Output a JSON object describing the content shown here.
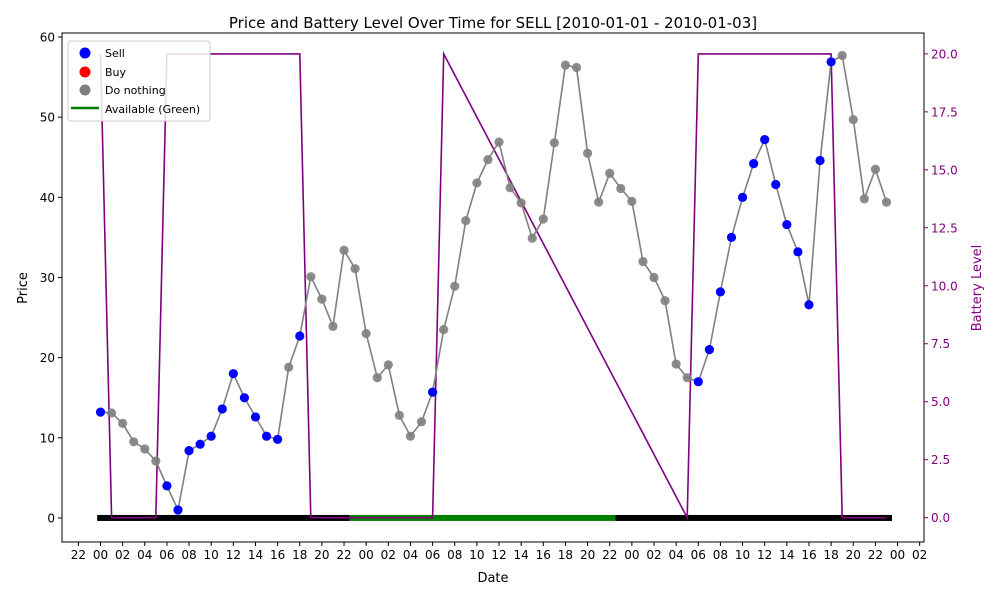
{
  "chart_data": {
    "type": "line",
    "title": "Price and Battery Level Over Time for SELL [2010-01-01 - 2010-01-03]",
    "xlabel": "Date",
    "ylabel": "Price",
    "y2label": "Battery Level",
    "x_start": "2009-12-31 22:00",
    "x_end": "2010-01-04 02:00",
    "xlim_hours_from_start_label": "22:00 (day before) to 02:00 (day after)",
    "x_tick_labels": [
      "22",
      "00",
      "02",
      "04",
      "06",
      "08",
      "10",
      "12",
      "14",
      "16",
      "18",
      "20",
      "22",
      "00",
      "02",
      "04",
      "06",
      "08",
      "10",
      "12",
      "14",
      "16",
      "18",
      "20",
      "22",
      "00",
      "02",
      "04",
      "06",
      "08",
      "10",
      "12",
      "14",
      "16",
      "18",
      "20",
      "22",
      "00",
      "02"
    ],
    "ylim": [
      -3,
      60.5
    ],
    "y_ticks": [
      "0",
      "10",
      "20",
      "30",
      "40",
      "50",
      "60"
    ],
    "y2lim": [
      -1.05,
      20.9
    ],
    "y2_ticks": [
      "0.0",
      "2.5",
      "5.0",
      "7.5",
      "10.0",
      "12.5",
      "15.0",
      "17.5",
      "20.0"
    ],
    "legend": {
      "position": "top-left",
      "entries": [
        {
          "label": "Sell",
          "color": "#0000ff",
          "marker": "circle"
        },
        {
          "label": "Buy",
          "color": "#ff0000",
          "marker": "circle"
        },
        {
          "label": "Do nothing",
          "color": "#808080",
          "marker": "circle"
        },
        {
          "label": "Available (Green)",
          "color": "#008000",
          "marker": "line"
        }
      ]
    },
    "price_series": {
      "name": "Price",
      "line_color": "#808080",
      "hours": [
        0,
        1,
        2,
        3,
        4,
        5,
        6,
        7,
        8,
        9,
        10,
        11,
        12,
        13,
        14,
        15,
        16,
        17,
        18,
        19,
        20,
        21,
        22,
        23,
        24,
        25,
        26,
        27,
        28,
        29,
        30,
        31,
        32,
        33,
        34,
        35,
        36,
        37,
        38,
        39,
        40,
        41,
        42,
        43,
        44,
        45,
        46,
        47,
        48,
        49,
        50,
        51,
        52,
        53,
        54,
        55,
        56,
        57,
        58,
        59,
        60,
        61,
        62,
        63,
        64,
        65,
        66,
        67,
        68,
        69,
        70,
        71
      ],
      "dates": [
        "2010-01-01 00:00",
        "2010-01-01 01:00",
        "2010-01-01 02:00",
        "2010-01-01 03:00",
        "2010-01-01 04:00",
        "2010-01-01 05:00",
        "2010-01-01 06:00",
        "2010-01-01 07:00",
        "2010-01-01 08:00",
        "2010-01-01 09:00",
        "2010-01-01 10:00",
        "2010-01-01 11:00",
        "2010-01-01 12:00",
        "2010-01-01 13:00",
        "2010-01-01 14:00",
        "2010-01-01 15:00",
        "2010-01-01 16:00",
        "2010-01-01 17:00",
        "2010-01-01 18:00",
        "2010-01-01 19:00",
        "2010-01-01 20:00",
        "2010-01-01 21:00",
        "2010-01-01 22:00",
        "2010-01-01 23:00",
        "2010-01-02 00:00",
        "2010-01-02 01:00",
        "2010-01-02 02:00",
        "2010-01-02 03:00",
        "2010-01-02 04:00",
        "2010-01-02 05:00",
        "2010-01-02 06:00",
        "2010-01-02 07:00",
        "2010-01-02 08:00",
        "2010-01-02 09:00",
        "2010-01-02 10:00",
        "2010-01-02 11:00",
        "2010-01-02 12:00",
        "2010-01-02 13:00",
        "2010-01-02 14:00",
        "2010-01-02 15:00",
        "2010-01-02 16:00",
        "2010-01-02 17:00",
        "2010-01-02 18:00",
        "2010-01-02 19:00",
        "2010-01-02 20:00",
        "2010-01-02 21:00",
        "2010-01-02 22:00",
        "2010-01-02 23:00",
        "2010-01-03 00:00",
        "2010-01-03 01:00",
        "2010-01-03 02:00",
        "2010-01-03 03:00",
        "2010-01-03 04:00",
        "2010-01-03 05:00",
        "2010-01-03 06:00",
        "2010-01-03 07:00",
        "2010-01-03 08:00",
        "2010-01-03 09:00",
        "2010-01-03 10:00",
        "2010-01-03 11:00",
        "2010-01-03 12:00",
        "2010-01-03 13:00",
        "2010-01-03 14:00",
        "2010-01-03 15:00",
        "2010-01-03 16:00",
        "2010-01-03 17:00",
        "2010-01-03 18:00",
        "2010-01-03 19:00",
        "2010-01-03 20:00",
        "2010-01-03 21:00",
        "2010-01-03 22:00",
        "2010-01-03 23:00"
      ],
      "values": [
        13.2,
        13.1,
        11.8,
        9.5,
        8.6,
        7.1,
        4.0,
        1.0,
        8.4,
        9.2,
        10.2,
        13.6,
        18.0,
        15.0,
        12.6,
        10.2,
        9.8,
        18.8,
        22.7,
        30.1,
        27.3,
        23.9,
        33.4,
        31.1,
        23.0,
        17.5,
        19.1,
        12.8,
        10.2,
        12.0,
        15.7,
        23.5,
        28.9,
        37.1,
        41.8,
        44.7,
        46.9,
        41.2,
        39.3,
        34.9,
        37.3,
        46.8,
        56.5,
        56.2,
        45.5,
        39.4,
        43.0,
        41.1,
        39.5,
        32.0,
        30.0,
        27.1,
        19.2,
        17.5,
        17.0,
        21.0,
        28.2,
        35.0,
        40.0,
        44.2,
        47.2,
        41.6,
        36.6,
        33.2,
        26.6,
        44.6,
        56.9,
        57.7,
        49.7,
        39.8,
        43.5,
        39.4
      ],
      "actions": [
        "Sell",
        "Do nothing",
        "Do nothing",
        "Do nothing",
        "Do nothing",
        "Do nothing",
        "Sell",
        "Sell",
        "Sell",
        "Sell",
        "Sell",
        "Sell",
        "Sell",
        "Sell",
        "Sell",
        "Sell",
        "Sell",
        "Do nothing",
        "Sell",
        "Do nothing",
        "Do nothing",
        "Do nothing",
        "Do nothing",
        "Do nothing",
        "Do nothing",
        "Do nothing",
        "Do nothing",
        "Do nothing",
        "Do nothing",
        "Do nothing",
        "Sell",
        "Do nothing",
        "Do nothing",
        "Do nothing",
        "Do nothing",
        "Do nothing",
        "Do nothing",
        "Do nothing",
        "Do nothing",
        "Do nothing",
        "Do nothing",
        "Do nothing",
        "Do nothing",
        "Do nothing",
        "Do nothing",
        "Do nothing",
        "Do nothing",
        "Do nothing",
        "Do nothing",
        "Do nothing",
        "Do nothing",
        "Do nothing",
        "Do nothing",
        "Do nothing",
        "Sell",
        "Sell",
        "Sell",
        "Sell",
        "Sell",
        "Sell",
        "Sell",
        "Sell",
        "Sell",
        "Sell",
        "Sell",
        "Sell",
        "Sell",
        "Do nothing",
        "Do nothing",
        "Do nothing",
        "Do nothing",
        "Do nothing"
      ]
    },
    "battery_series": {
      "name": "Battery Level",
      "color": "#800080",
      "hours": [
        0,
        1,
        5,
        6,
        18,
        19,
        30,
        31,
        53,
        54,
        66,
        67,
        71
      ],
      "values": [
        20,
        0,
        0,
        20,
        20,
        0,
        0,
        20,
        0,
        20,
        20,
        0,
        0
      ],
      "note_hours": "hours counted from 2010-01-01 00:00"
    },
    "availability_bar": {
      "y_value": 0,
      "segments": [
        {
          "from_hour": -0.3,
          "to_hour": 22.5,
          "color": "#000000"
        },
        {
          "from_hour": 22.5,
          "to_hour": 46.5,
          "color": "#008000"
        },
        {
          "from_hour": 46.5,
          "to_hour": 71.5,
          "color": "#000000"
        }
      ]
    },
    "grid": false
  }
}
